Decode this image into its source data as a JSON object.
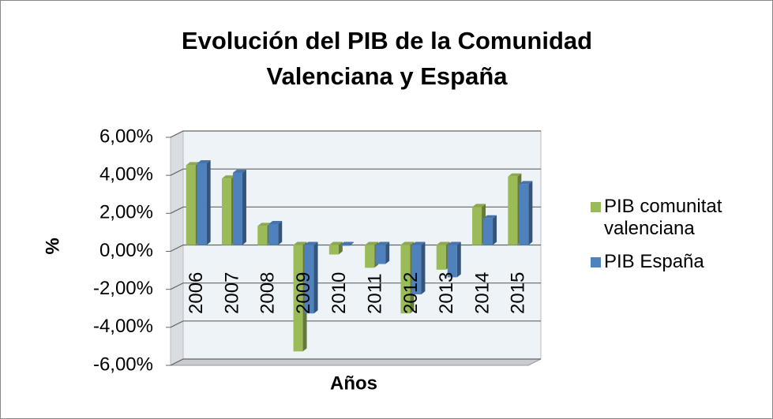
{
  "chart_data": {
    "type": "bar",
    "title": [
      "Evolución del PIB de la Comunidad",
      "Valenciana y España"
    ],
    "x_label": "Años",
    "y_label": "%",
    "categories": [
      "2006",
      "2007",
      "2008",
      "2009",
      "2010",
      "2011",
      "2012",
      "2013",
      "2014",
      "2015"
    ],
    "series": [
      {
        "name": "PIB comunitat valenciana",
        "color": "#9bbb59",
        "values": [
          4.2,
          3.5,
          1.0,
          -5.6,
          -0.5,
          -1.2,
          -3.6,
          -1.3,
          2.0,
          3.6
        ]
      },
      {
        "name": "PIB España",
        "color": "#4f81bd",
        "values": [
          4.3,
          3.8,
          1.1,
          -3.6,
          0.0,
          -1.0,
          -2.6,
          -1.7,
          1.4,
          3.2
        ]
      }
    ],
    "ylim": [
      -6,
      6
    ],
    "yticks": [
      {
        "value": -6,
        "label": "-6,00%"
      },
      {
        "value": -4,
        "label": "-4,00%"
      },
      {
        "value": -2,
        "label": "-2,00%"
      },
      {
        "value": 0,
        "label": "0,00%"
      },
      {
        "value": 2,
        "label": "2,00%"
      },
      {
        "value": 4,
        "label": "4,00%"
      },
      {
        "value": 6,
        "label": "6,00%"
      }
    ],
    "grid": true,
    "legend": "right"
  }
}
